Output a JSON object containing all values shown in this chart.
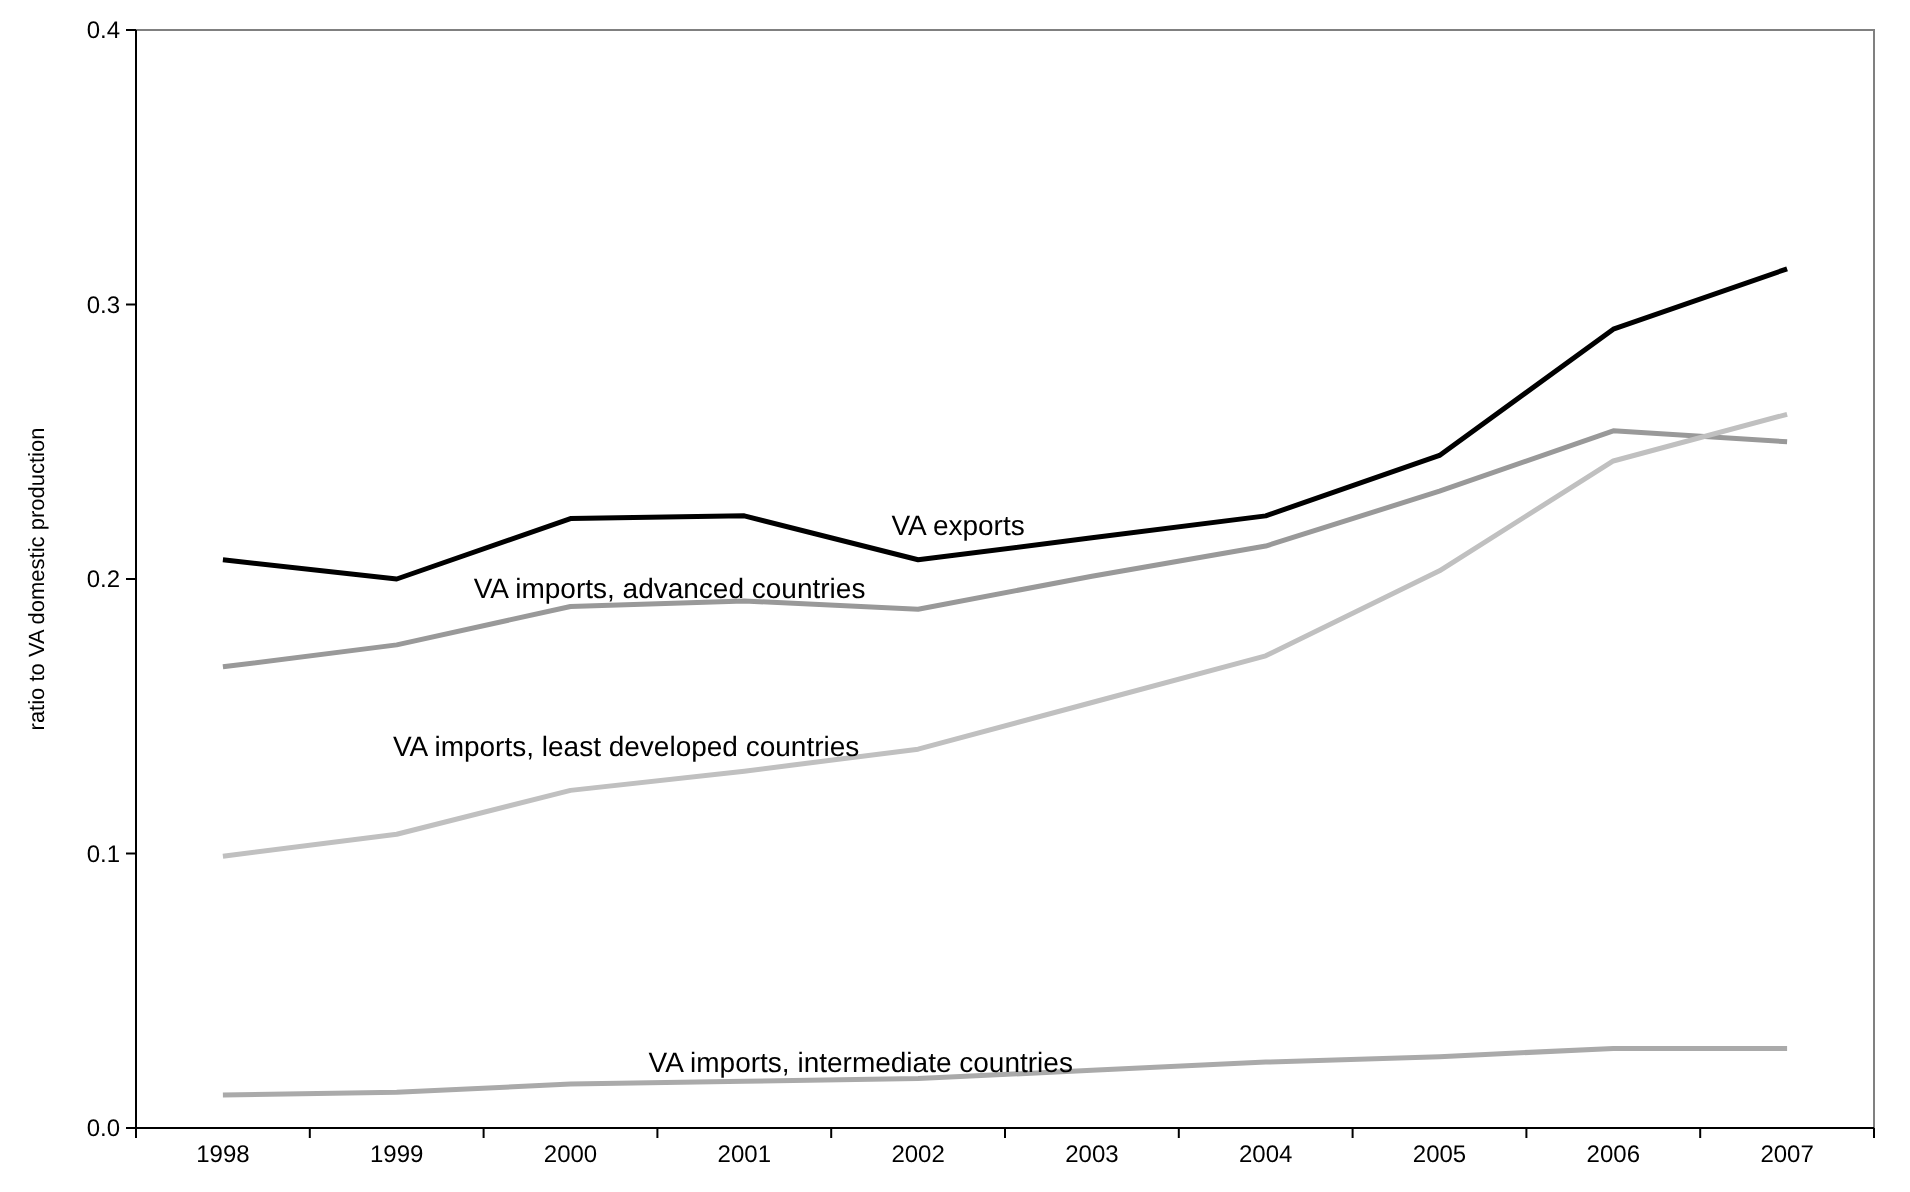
{
  "chart_data": {
    "type": "line",
    "ylabel": "ratio to VA domestic production",
    "categories": [
      "1998",
      "1999",
      "2000",
      "2001",
      "2002",
      "2003",
      "2004",
      "2005",
      "2006",
      "2007"
    ],
    "series": [
      {
        "name": "VA exports",
        "color": "#000000",
        "values": [
          0.207,
          0.2,
          0.222,
          0.223,
          0.207,
          0.215,
          0.223,
          0.245,
          0.291,
          0.313
        ]
      },
      {
        "name": "VA imports, advanced countries",
        "color": "#999999",
        "values": [
          0.168,
          0.176,
          0.19,
          0.192,
          0.189,
          0.201,
          0.212,
          0.232,
          0.254,
          0.25
        ]
      },
      {
        "name": "VA imports, least developed countries",
        "color": "#c0c0c0",
        "values": [
          0.099,
          0.107,
          0.123,
          0.13,
          0.138,
          0.155,
          0.172,
          0.203,
          0.243,
          0.26
        ]
      },
      {
        "name": "VA imports, intermediate countries",
        "color": "#aaaaaa",
        "values": [
          0.012,
          0.013,
          0.016,
          0.017,
          0.018,
          0.021,
          0.024,
          0.026,
          0.029,
          0.029
        ]
      }
    ],
    "ylim": [
      0,
      0.4
    ],
    "yticks": [
      {
        "value": 0,
        "label": "0.0"
      },
      0.1,
      0.2,
      0.3,
      0.4
    ],
    "grid": false,
    "legend": false,
    "marker": "none",
    "line_style": "solid"
  }
}
